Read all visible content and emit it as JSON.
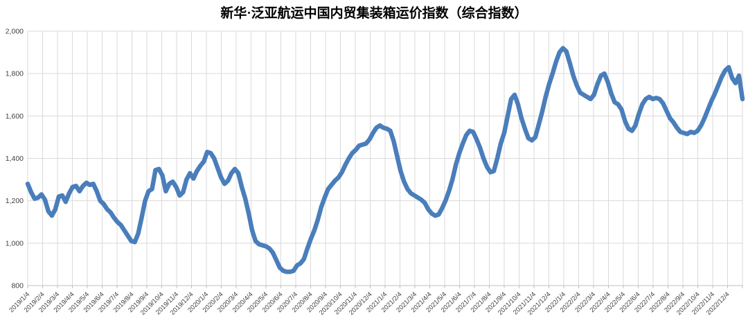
{
  "chart_data": {
    "type": "line",
    "title": "新华·泛亚航运中国内贸集装箱运价指数（综合指数）",
    "xlabel": "",
    "ylabel": "",
    "ylim": [
      800,
      2000
    ],
    "grid": true,
    "legend_position": "none",
    "line_color": "#4A7EBB",
    "grid_color": "#D9D9D9",
    "axis_color": "#BFBFBF",
    "text_color": "#404040",
    "y_tick_values": [
      800,
      1000,
      1200,
      1400,
      1600,
      1800,
      2000
    ],
    "y_tick_labels": [
      "800",
      "1,000",
      "1,200",
      "1,400",
      "1,600",
      "1,800",
      "2,000"
    ],
    "x_tick_labels": [
      "2019/1/4",
      "2019/2/4",
      "2019/3/4",
      "2019/4/4",
      "2019/5/4",
      "2019/6/4",
      "2019/7/4",
      "2019/8/4",
      "2019/9/4",
      "2019/10/4",
      "2019/11/4",
      "2019/12/4",
      "2020/1/4",
      "2020/2/4",
      "2020/3/4",
      "2020/4/4",
      "2020/5/4",
      "2020/6/4",
      "2020/7/4",
      "2020/8/4",
      "2020/9/4",
      "2020/10/4",
      "2020/11/4",
      "2020/12/4",
      "2021/1/4",
      "2021/2/4",
      "2021/3/4",
      "2021/4/4",
      "2021/5/4",
      "2021/6/4",
      "2021/7/4",
      "2021/8/4",
      "2021/9/4",
      "2021/10/4",
      "2021/11/4",
      "2021/12/4",
      "2022/1/4",
      "2022/2/4",
      "2022/3/4",
      "2022/4/4",
      "2022/5/4",
      "2022/6/4",
      "2022/7/4",
      "2022/8/4",
      "2022/9/4",
      "2022/10/4",
      "2022/11/4",
      "2022/12/4"
    ],
    "x_unit": "week",
    "series": [
      {
        "name": "综合指数",
        "values": [
          1280,
          1240,
          1210,
          1215,
          1230,
          1205,
          1150,
          1130,
          1160,
          1220,
          1225,
          1195,
          1235,
          1265,
          1270,
          1245,
          1270,
          1285,
          1275,
          1280,
          1245,
          1200,
          1185,
          1160,
          1145,
          1120,
          1100,
          1085,
          1060,
          1035,
          1010,
          1005,
          1045,
          1120,
          1200,
          1245,
          1255,
          1345,
          1350,
          1320,
          1245,
          1280,
          1290,
          1265,
          1225,
          1240,
          1300,
          1330,
          1305,
          1340,
          1365,
          1385,
          1430,
          1425,
          1400,
          1355,
          1310,
          1280,
          1295,
          1330,
          1350,
          1330,
          1265,
          1210,
          1140,
          1060,
          1010,
          995,
          990,
          985,
          975,
          955,
          920,
          885,
          870,
          865,
          865,
          870,
          895,
          905,
          925,
          975,
          1020,
          1060,
          1110,
          1170,
          1215,
          1255,
          1275,
          1295,
          1310,
          1335,
          1370,
          1400,
          1425,
          1440,
          1460,
          1465,
          1470,
          1490,
          1520,
          1545,
          1555,
          1545,
          1540,
          1530,
          1480,
          1410,
          1340,
          1290,
          1255,
          1235,
          1225,
          1215,
          1205,
          1190,
          1160,
          1140,
          1130,
          1135,
          1165,
          1200,
          1245,
          1300,
          1370,
          1425,
          1470,
          1510,
          1530,
          1525,
          1490,
          1450,
          1400,
          1360,
          1335,
          1340,
          1400,
          1470,
          1520,
          1600,
          1680,
          1700,
          1655,
          1590,
          1540,
          1495,
          1485,
          1500,
          1560,
          1620,
          1690,
          1750,
          1800,
          1855,
          1900,
          1920,
          1905,
          1850,
          1790,
          1745,
          1710,
          1700,
          1690,
          1680,
          1700,
          1750,
          1790,
          1800,
          1760,
          1705,
          1665,
          1655,
          1630,
          1575,
          1540,
          1530,
          1555,
          1610,
          1655,
          1680,
          1690,
          1680,
          1685,
          1680,
          1660,
          1625,
          1590,
          1570,
          1545,
          1525,
          1520,
          1515,
          1525,
          1520,
          1530,
          1555,
          1590,
          1630,
          1670,
          1705,
          1745,
          1785,
          1815,
          1830,
          1780,
          1755,
          1790,
          1680
        ]
      }
    ]
  }
}
